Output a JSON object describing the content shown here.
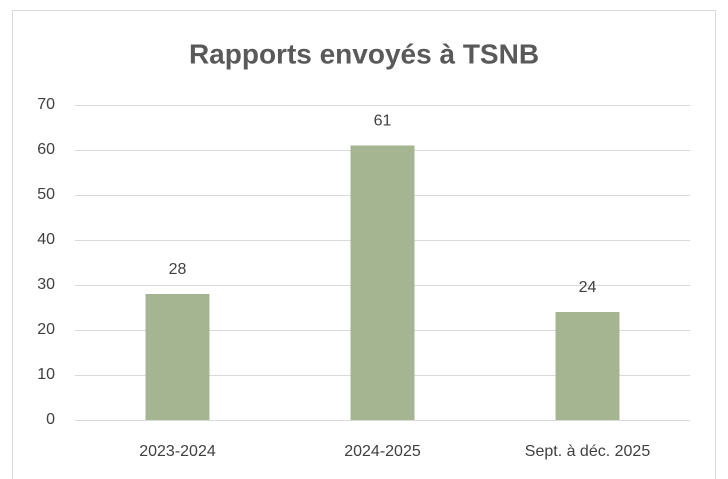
{
  "chart_data": {
    "type": "bar",
    "title": "Rapports envoyés à TSNB",
    "categories": [
      "2023-2024",
      "2024-2025",
      "Sept. à déc. 2025"
    ],
    "values": [
      28,
      61,
      24
    ],
    "color": "#a5b592",
    "ylim": [
      0,
      70
    ],
    "yticks": [
      0,
      10,
      20,
      30,
      40,
      50,
      60,
      70
    ],
    "grid": true
  }
}
